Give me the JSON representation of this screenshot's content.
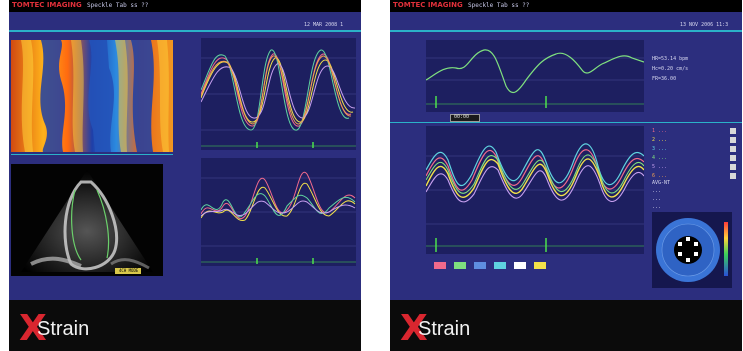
{
  "left_screen": {
    "brand": "TOMTEC IMAGING",
    "window_label": "Speckle Tab ss ??",
    "date": "12 MAR 2008 1",
    "echo_caption": "4CH MODE",
    "colors": {
      "screen": "#2c2e7e",
      "rule": "#2bb2c8"
    }
  },
  "right_screen": {
    "brand": "TOMTEC IMAGING",
    "window_label": "Speckle Tab ss ??",
    "date": "13 NOV 2006 11:3",
    "info_lines": [
      "HR=53.14 bpm",
      "Hc=0.20 cm/s",
      "FR=36.00"
    ],
    "time_marker": "00:00",
    "legend_lines": [
      "1 ...",
      "2 ...",
      "3 ...",
      "4 ...",
      "5 ...",
      "6 ..."
    ],
    "stats_lines": [
      "AVG-NT",
      "...",
      "...",
      "..."
    ]
  },
  "logo": {
    "mark": "X",
    "word": "Strain",
    "mark_color": "#d9262f"
  }
}
